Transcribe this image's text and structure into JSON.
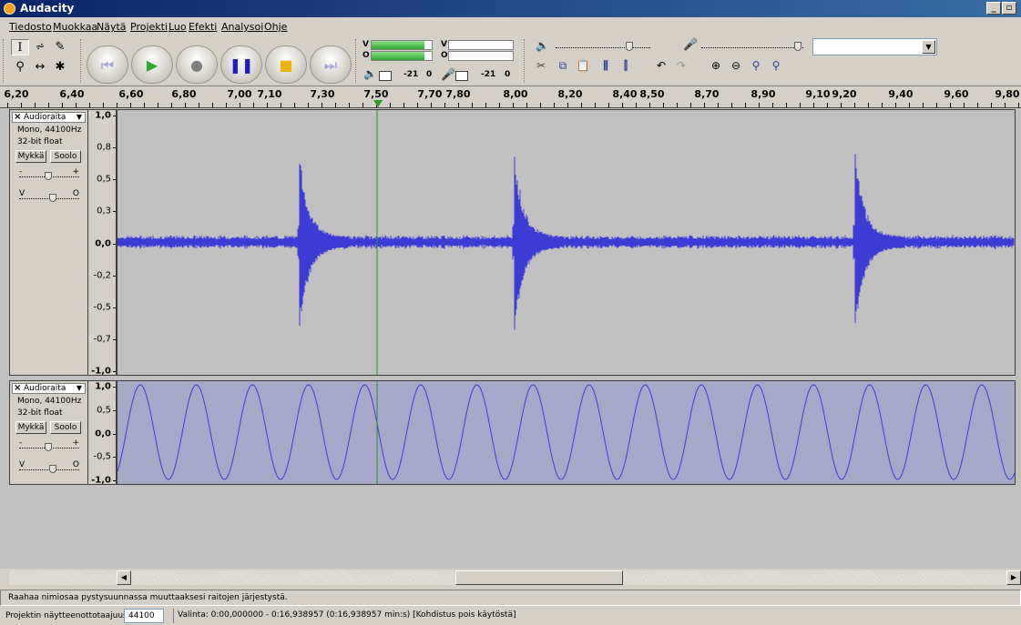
{
  "window": {
    "title": "Audacity",
    "minimize_glyph": "_",
    "restore_glyph": "▫"
  },
  "menu": [
    "Tiedosto",
    "Muokkaa",
    "Näytä",
    "Projekti",
    "Luo",
    "Efekti",
    "Analysoi",
    "Ohje"
  ],
  "toolbar": {
    "transport_icons": [
      "skip-start-icon",
      "play-icon",
      "record-icon",
      "pause-icon",
      "stop-icon",
      "skip-end-icon"
    ],
    "meter": {
      "play_label": "V",
      "play_label2": "O",
      "rec_label": "V",
      "rec_label2": "O",
      "play_db": "-21",
      "play_zero": "0",
      "rec_db": "-21",
      "rec_zero": "0",
      "play_level": 0.88
    },
    "output_volume_level": 0.78,
    "input_volume_level": 0.95,
    "device_combo_value": ""
  },
  "ruler": {
    "labels": [
      "6,20",
      "6,40",
      "6,60",
      "6,80",
      "7,00",
      "7,10",
      "7,30",
      "7,50",
      "7,70",
      "7,80",
      "8,00",
      "8,20",
      "8,40",
      "8,50",
      "8,70",
      "8,90",
      "9,10",
      "9,20",
      "9,40",
      "9,60",
      "9,80"
    ]
  },
  "tracks": [
    {
      "name": "Audioraita",
      "info1": "Mono, 44100Hz",
      "info2": "32-bit float",
      "mute": "Mykkä",
      "solo": "Soolo",
      "gain_minus": "-",
      "gain_plus": "+",
      "pan_left": "V",
      "pan_right": "O",
      "gain_level": 0.4,
      "pan_level": 0.5,
      "scale": [
        "1,0",
        "0,8",
        "0,5",
        "0,3",
        "0,0",
        "-0,2",
        "-0,5",
        "-0,7",
        "-1,0"
      ]
    },
    {
      "name": "Audioraita",
      "info1": "Mono, 44100Hz",
      "info2": "32-bit float",
      "mute": "Mykkä",
      "solo": "Soolo",
      "gain_minus": "-",
      "gain_plus": "+",
      "pan_left": "V",
      "pan_right": "O",
      "gain_level": 0.4,
      "pan_level": 0.5,
      "scale": [
        "1,0",
        "0,5",
        "0,0",
        "-0,5",
        "-1,0"
      ]
    }
  ],
  "status": {
    "hint": "Raahaa nimiosaa pystysuunnassa muuttaaksesi raitojen järjestystä.",
    "rate_label": "Projektin näytteenottotaajuus:",
    "rate_value": "44100",
    "selection": "Valinta: 0:00,000000 - 0:16,938957 (0:16,938957 min:s)  [Kohdistus pois käytöstä]"
  },
  "colors": {
    "wave": "#3c3cd4",
    "track1_bg": "#c0c0c0",
    "track2_bg": "#a7a7c8",
    "cursor": "#2e8b2e"
  }
}
